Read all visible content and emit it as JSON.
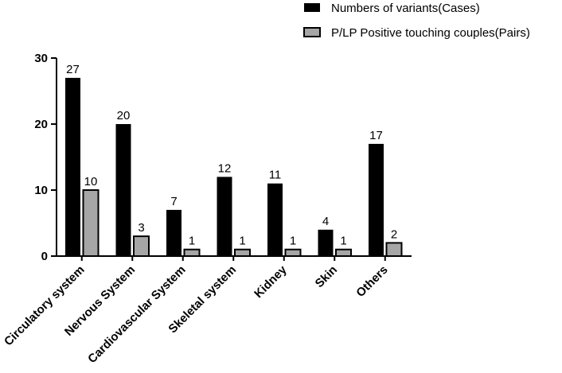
{
  "chart_data": {
    "type": "bar",
    "title": "",
    "xlabel": "",
    "ylabel": "",
    "categories": [
      "Circulatory system",
      "Nervous System",
      "Cardiovascular System",
      "Skeletal system",
      "Kidney",
      "Skin",
      "Others"
    ],
    "series": [
      {
        "name": "Numbers of variants(Cases)",
        "values": [
          27,
          20,
          7,
          12,
          11,
          4,
          17
        ],
        "color": "#000000"
      },
      {
        "name": "P/LP Positive touching couples(Pairs)",
        "values": [
          10,
          3,
          1,
          1,
          1,
          1,
          2
        ],
        "color": "#a6a6a6"
      }
    ],
    "ylim": [
      0,
      30
    ],
    "yticks": [
      0,
      10,
      20,
      30
    ],
    "grid": false,
    "legend_position": "top-right",
    "show_data_labels": true
  }
}
